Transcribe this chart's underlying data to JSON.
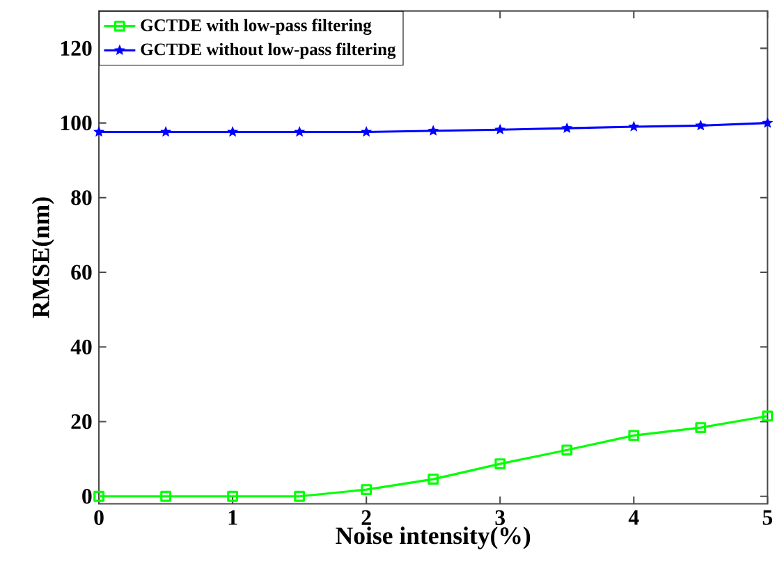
{
  "chart_data": {
    "type": "line",
    "xlabel": "Noise intensity(%)",
    "ylabel": "RMSE(nm)",
    "x": [
      0,
      0.5,
      1,
      1.5,
      2,
      2.5,
      3,
      3.5,
      4,
      4.5,
      5
    ],
    "series": [
      {
        "name": "GCTDE with low-pass filtering",
        "color": "#00ff00",
        "marker": "square",
        "values": [
          0,
          0,
          0,
          0,
          1.8,
          4.6,
          8.7,
          12.4,
          16.3,
          18.4,
          21.5
        ]
      },
      {
        "name": "GCTDE without low-pass filtering",
        "color": "#0000ff",
        "marker": "star",
        "values": [
          97.6,
          97.6,
          97.6,
          97.6,
          97.6,
          97.9,
          98.2,
          98.6,
          99.0,
          99.3,
          100
        ]
      }
    ],
    "xlim": [
      0,
      5
    ],
    "ylim": [
      -2,
      130
    ],
    "xticks": [
      0,
      1,
      2,
      3,
      4,
      5
    ],
    "yticks": [
      0,
      20,
      40,
      60,
      80,
      100,
      120
    ],
    "legend": "top left",
    "grid": false,
    "line_style": "solid"
  }
}
